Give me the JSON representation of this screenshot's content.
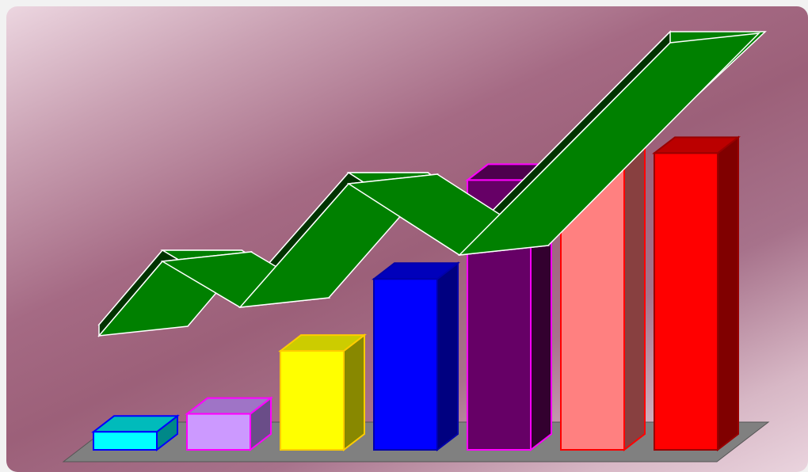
{
  "chart_data": {
    "type": "bar",
    "categories": [
      "",
      "",
      "",
      "",
      "",
      "",
      ""
    ],
    "values": [
      1,
      2,
      5.5,
      9.5,
      15,
      17,
      16.5
    ],
    "ylim": [
      0,
      17
    ],
    "grid": false,
    "bar_colors": [
      {
        "face": "#00ffff",
        "edge": "#0000ff",
        "top": "#00bbbb",
        "side": "#008888"
      },
      {
        "face": "#cc99ff",
        "edge": "#ff00ff",
        "top": "#9f74c6",
        "side": "#6a4d88"
      },
      {
        "face": "#ffff00",
        "edge": "#ffcc00",
        "top": "#cccc00",
        "side": "#888800"
      },
      {
        "face": "#0000ff",
        "edge": "#0000aa",
        "top": "#0000bb",
        "side": "#000080"
      },
      {
        "face": "#660066",
        "edge": "#ff00ff",
        "top": "#4d004d",
        "side": "#33002f"
      },
      {
        "face": "#ff8080",
        "edge": "#ff0000",
        "top": "#cc6666",
        "side": "#884040"
      },
      {
        "face": "#ff0000",
        "edge": "#990000",
        "top": "#bb0000",
        "side": "#800000"
      }
    ],
    "trend_line": {
      "values": [
        4.5,
        3,
        7.5,
        5,
        17.5
      ],
      "color": "#008000",
      "shadow_color": "#003300"
    },
    "floor_color": "#808080"
  }
}
